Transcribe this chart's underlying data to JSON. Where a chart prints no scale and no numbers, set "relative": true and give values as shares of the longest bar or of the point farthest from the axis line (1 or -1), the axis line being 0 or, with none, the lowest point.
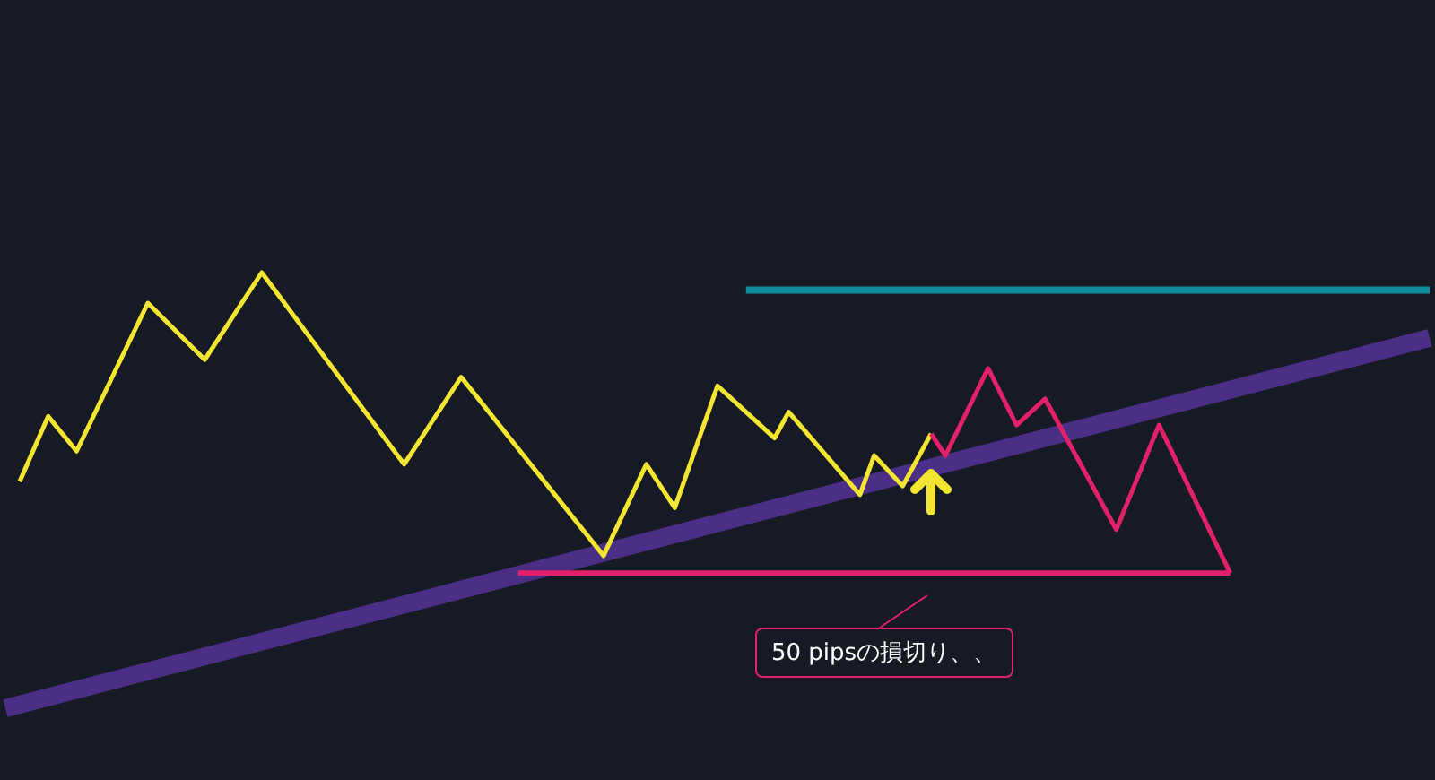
{
  "chart_data": {
    "type": "line",
    "relative": true,
    "marker": "none",
    "line_style": "solid",
    "categories": [
      null,
      null,
      null,
      null,
      null,
      null,
      null,
      null,
      null,
      null,
      null,
      null,
      null,
      null,
      null,
      null,
      null,
      null,
      null,
      null,
      null,
      null,
      null,
      null,
      null,
      null,
      null,
      null,
      null,
      null,
      null,
      null,
      null,
      null,
      null,
      null,
      null,
      null,
      null,
      null,
      null,
      null,
      null,
      null,
      null,
      null,
      null,
      null,
      null,
      null,
      null,
      null,
      null,
      null,
      null,
      null,
      null,
      null,
      null,
      null,
      null,
      null,
      null,
      null,
      null,
      null,
      null,
      null,
      null,
      null,
      null,
      null,
      null,
      null,
      null,
      null,
      null,
      null,
      null,
      null,
      null,
      null,
      null,
      null,
      null,
      null,
      null,
      null,
      null,
      null,
      null,
      null,
      null,
      null,
      null,
      null,
      null,
      null,
      null,
      null,
      null
    ],
    "series": [
      {
        "color": "#4b2f86",
        "values": [
          0,
          null,
          null,
          null,
          null,
          null,
          null,
          null,
          null,
          null,
          null,
          null,
          null,
          null,
          null,
          null,
          null,
          null,
          null,
          null,
          null,
          null,
          null,
          null,
          null,
          null,
          null,
          null,
          null,
          null,
          null,
          null,
          null,
          null,
          null,
          null,
          null,
          null,
          null,
          null,
          null,
          null,
          null,
          null,
          null,
          null,
          null,
          null,
          null,
          null,
          null,
          null,
          null,
          null,
          null,
          null,
          null,
          null,
          null,
          null,
          null,
          null,
          null,
          null,
          null,
          null,
          null,
          null,
          null,
          null,
          null,
          null,
          null,
          null,
          null,
          null,
          null,
          null,
          null,
          null,
          null,
          null,
          null,
          null,
          null,
          null,
          null,
          null,
          null,
          null,
          null,
          null,
          null,
          null,
          null,
          null,
          null,
          null,
          null,
          null,
          0.85
        ]
      },
      {
        "color": "#0f8c9c",
        "values": [
          null,
          null,
          null,
          null,
          null,
          null,
          null,
          null,
          null,
          null,
          null,
          null,
          null,
          null,
          null,
          null,
          null,
          null,
          null,
          null,
          null,
          null,
          null,
          null,
          null,
          null,
          null,
          null,
          null,
          null,
          null,
          null,
          null,
          null,
          null,
          null,
          null,
          null,
          null,
          null,
          null,
          null,
          null,
          null,
          null,
          null,
          null,
          null,
          null,
          null,
          null,
          null,
          0.96,
          null,
          null,
          null,
          null,
          null,
          null,
          null,
          null,
          null,
          null,
          null,
          null,
          null,
          null,
          null,
          null,
          null,
          null,
          null,
          null,
          null,
          null,
          null,
          null,
          null,
          null,
          null,
          null,
          null,
          null,
          null,
          null,
          null,
          null,
          null,
          null,
          null,
          null,
          null,
          null,
          null,
          null,
          null,
          null,
          null,
          null,
          null,
          0.96
        ]
      },
      {
        "color": "#e3206a",
        "values": [
          null,
          null,
          null,
          null,
          null,
          null,
          null,
          null,
          null,
          null,
          null,
          null,
          null,
          null,
          null,
          null,
          null,
          null,
          null,
          null,
          null,
          null,
          null,
          null,
          null,
          null,
          null,
          null,
          null,
          null,
          null,
          null,
          null,
          null,
          null,
          null,
          0.31,
          null,
          null,
          null,
          null,
          null,
          null,
          null,
          null,
          null,
          null,
          null,
          null,
          null,
          null,
          null,
          null,
          null,
          null,
          null,
          null,
          null,
          null,
          null,
          null,
          null,
          null,
          null,
          null,
          null,
          null,
          null,
          null,
          null,
          null,
          null,
          null,
          null,
          null,
          null,
          null,
          null,
          null,
          null,
          null,
          null,
          null,
          null,
          null,
          null,
          0.31,
          null,
          null,
          null,
          null,
          null,
          null,
          null,
          null,
          null,
          null,
          null,
          null,
          null,
          null
        ]
      },
      {
        "color": "#f4e530",
        "values": [
          null,
          0.52,
          null,
          0.67,
          null,
          0.59,
          null,
          null,
          null,
          null,
          0.93,
          null,
          null,
          null,
          0.8,
          null,
          null,
          null,
          1,
          null,
          null,
          null,
          null,
          null,
          null,
          null,
          null,
          null,
          0.56,
          null,
          null,
          null,
          0.76,
          null,
          null,
          null,
          null,
          null,
          null,
          null,
          null,
          null,
          0.35,
          null,
          null,
          0.56,
          null,
          0.46,
          null,
          null,
          0.74,
          null,
          null,
          null,
          0.62,
          0.68,
          null,
          null,
          null,
          null,
          0.49,
          0.58,
          null,
          0.51,
          null,
          0.63,
          null,
          null,
          null,
          null,
          null,
          null,
          null,
          null,
          null,
          null,
          null,
          null,
          null,
          null,
          null,
          null,
          null,
          null,
          null,
          null,
          null,
          null,
          null,
          null,
          null,
          null,
          null,
          null,
          null,
          null,
          null,
          null,
          null,
          null,
          null
        ]
      },
      {
        "color": "#e3206a",
        "values": [
          null,
          null,
          null,
          null,
          null,
          null,
          null,
          null,
          null,
          null,
          null,
          null,
          null,
          null,
          null,
          null,
          null,
          null,
          null,
          null,
          null,
          null,
          null,
          null,
          null,
          null,
          null,
          null,
          null,
          null,
          null,
          null,
          null,
          null,
          null,
          null,
          null,
          null,
          null,
          null,
          null,
          null,
          null,
          null,
          null,
          null,
          null,
          null,
          null,
          null,
          null,
          null,
          null,
          null,
          null,
          null,
          null,
          null,
          null,
          null,
          null,
          null,
          null,
          null,
          null,
          0.63,
          0.58,
          null,
          null,
          0.78,
          null,
          0.65,
          null,
          0.71,
          null,
          null,
          null,
          null,
          0.41,
          null,
          null,
          0.65,
          null,
          null,
          null,
          null,
          0.31,
          null,
          null,
          null,
          null,
          null,
          null,
          null,
          null,
          null,
          null,
          null,
          null,
          null,
          null
        ]
      }
    ],
    "annotations": [
      "50 pipsの損切り、、"
    ]
  }
}
